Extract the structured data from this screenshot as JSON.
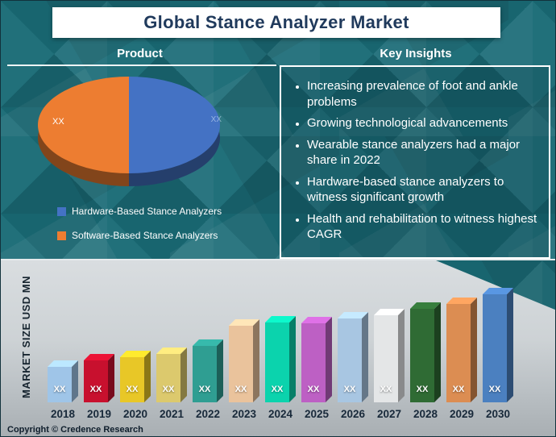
{
  "header": {
    "title": "Global Stance Analyzer Market"
  },
  "sections": {
    "product_heading": "Product",
    "key_insights_heading": "Key Insights"
  },
  "key_insights": {
    "bullets": [
      "Increasing prevalence of foot and ankle problems",
      "Growing technological advancements",
      "Wearable stance analyzers had a major share in 2022",
      "Hardware-based stance analyzers to witness significant growth",
      "Health and rehabilitation to witness highest CAGR"
    ]
  },
  "chart_data": [
    {
      "type": "pie",
      "title": "Product",
      "slices": [
        {
          "name": "Hardware-Based Stance Analyzers",
          "color": "#4472c4",
          "label": "XX",
          "value_pct": 50
        },
        {
          "name": "Software-Based Stance Analyzers",
          "color": "#ed7d31",
          "label": "XX",
          "value_pct": 50
        }
      ],
      "legend_position": "bottom-left"
    },
    {
      "type": "bar",
      "title": "",
      "xlabel": "",
      "ylabel": "MARKET SIZE USD MN",
      "categories": [
        "2018",
        "2019",
        "2020",
        "2021",
        "2022",
        "2023",
        "2024",
        "2025",
        "2026",
        "2027",
        "2028",
        "2029",
        "2030"
      ],
      "value_labels": [
        "XX",
        "XX",
        "XX",
        "XX",
        "XX",
        "XX",
        "XX",
        "XX",
        "XX",
        "XX",
        "XX",
        "XX",
        "XX"
      ],
      "values": [
        44,
        52,
        56,
        60,
        70,
        95,
        99,
        98,
        104,
        108,
        116,
        122,
        134
      ],
      "colors": [
        "#9fc5e8",
        "#c8102e",
        "#e8c727",
        "#dcc96d",
        "#2f9e92",
        "#eac39c",
        "#0bd3ad",
        "#bd60c4",
        "#a8c6e2",
        "#e4e6e7",
        "#2f6b34",
        "#dc8d52",
        "#4b80c0"
      ],
      "grid": false,
      "legend": "none"
    }
  ],
  "footer": {
    "copyright": "Copyright © Credence Research"
  }
}
